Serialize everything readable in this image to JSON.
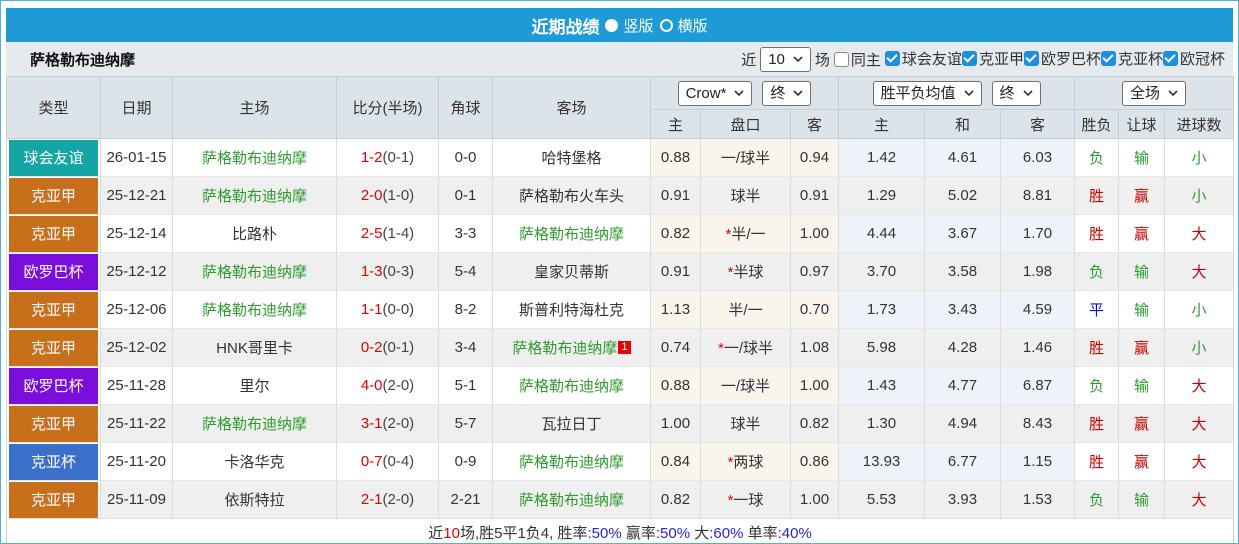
{
  "titlebar": {
    "title": "近期战绩",
    "radio_vertical_label": "竖版",
    "radio_horizontal_label": "横版"
  },
  "filterbar": {
    "team": "萨格勒布迪纳摩",
    "recent_label": "近",
    "recent_value": "10",
    "matches_label": "场",
    "same_home_label": "同主",
    "leagues": [
      "球会友谊",
      "克亚甲",
      "欧罗巴杯",
      "克亚杯",
      "欧冠杯"
    ]
  },
  "table": {
    "selects": {
      "odds_company": "Crow*",
      "odds_time": "终",
      "mean_type": "胜平负均值",
      "mean_time": "终",
      "scope": "全场"
    },
    "headers": {
      "type": "类型",
      "date": "日期",
      "home": "主场",
      "score": "比分(半场)",
      "corner": "角球",
      "away": "客场",
      "hcp_home": "主",
      "handicap": "盘口",
      "hcp_away": "客",
      "mean_home": "主",
      "mean_draw": "和",
      "mean_away": "客",
      "wdl": "胜负",
      "let": "让球",
      "goals": "进球数"
    },
    "rows": [
      {
        "type": "球会友谊",
        "type_color": "#14A5A5",
        "date": "26-01-15",
        "home": "萨格勒布迪纳摩",
        "home_green": true,
        "score": "1-2",
        "half": "(0-1)",
        "corner": "0-0",
        "away": "哈特堡格",
        "away_green": false,
        "away_sup": "",
        "odds_h": "0.88",
        "handicap_star": false,
        "handicap": "一/球半",
        "odds_a": "0.94",
        "mean_h": "1.42",
        "mean_d": "4.61",
        "mean_a": "6.03",
        "wdl": "负",
        "wdl_color": "green",
        "let": "输",
        "let_color": "green",
        "goal": "小",
        "goal_color": "green"
      },
      {
        "type": "克亚甲",
        "type_color": "#C76F1B",
        "date": "25-12-21",
        "home": "萨格勒布迪纳摩",
        "home_green": true,
        "score": "2-0",
        "half": "(1-0)",
        "corner": "0-1",
        "away": "萨格勒布火车头",
        "away_green": false,
        "away_sup": "",
        "odds_h": "0.91",
        "handicap_star": false,
        "handicap": "球半",
        "odds_a": "0.91",
        "mean_h": "1.29",
        "mean_d": "5.02",
        "mean_a": "8.81",
        "wdl": "胜",
        "wdl_color": "red",
        "let": "赢",
        "let_color": "red",
        "goal": "小",
        "goal_color": "green"
      },
      {
        "type": "克亚甲",
        "type_color": "#C76F1B",
        "date": "25-12-14",
        "home": "比路朴",
        "home_green": false,
        "score": "2-5",
        "half": "(1-4)",
        "corner": "3-3",
        "away": "萨格勒布迪纳摩",
        "away_green": true,
        "away_sup": "",
        "odds_h": "0.82",
        "handicap_star": true,
        "handicap": "半/一",
        "odds_a": "1.00",
        "mean_h": "4.44",
        "mean_d": "3.67",
        "mean_a": "1.70",
        "wdl": "胜",
        "wdl_color": "red",
        "let": "赢",
        "let_color": "red",
        "goal": "大",
        "goal_color": "red"
      },
      {
        "type": "欧罗巴杯",
        "type_color": "#7B0EDB",
        "date": "25-12-12",
        "home": "萨格勒布迪纳摩",
        "home_green": true,
        "score": "1-3",
        "half": "(0-3)",
        "corner": "5-4",
        "away": "皇家贝蒂斯",
        "away_green": false,
        "away_sup": "",
        "odds_h": "0.91",
        "handicap_star": true,
        "handicap": "半球",
        "odds_a": "0.97",
        "mean_h": "3.70",
        "mean_d": "3.58",
        "mean_a": "1.98",
        "wdl": "负",
        "wdl_color": "green",
        "let": "输",
        "let_color": "green",
        "goal": "大",
        "goal_color": "red"
      },
      {
        "type": "克亚甲",
        "type_color": "#C76F1B",
        "date": "25-12-06",
        "home": "萨格勒布迪纳摩",
        "home_green": true,
        "score": "1-1",
        "half": "(0-0)",
        "corner": "8-2",
        "away": "斯普利特海杜克",
        "away_green": false,
        "away_sup": "",
        "odds_h": "1.13",
        "handicap_star": false,
        "handicap": "半/一",
        "odds_a": "0.70",
        "mean_h": "1.73",
        "mean_d": "3.43",
        "mean_a": "4.59",
        "wdl": "平",
        "wdl_color": "blue",
        "let": "输",
        "let_color": "green",
        "goal": "小",
        "goal_color": "green"
      },
      {
        "type": "克亚甲",
        "type_color": "#C76F1B",
        "date": "25-12-02",
        "home": "HNK哥里卡",
        "home_green": false,
        "score": "0-2",
        "half": "(0-1)",
        "corner": "3-4",
        "away": "萨格勒布迪纳摩",
        "away_green": true,
        "away_sup": "1",
        "odds_h": "0.74",
        "handicap_star": true,
        "handicap": "一/球半",
        "odds_a": "1.08",
        "mean_h": "5.98",
        "mean_d": "4.28",
        "mean_a": "1.46",
        "wdl": "胜",
        "wdl_color": "red",
        "let": "赢",
        "let_color": "red",
        "goal": "小",
        "goal_color": "green"
      },
      {
        "type": "欧罗巴杯",
        "type_color": "#7B0EDB",
        "date": "25-11-28",
        "home": "里尔",
        "home_green": false,
        "score": "4-0",
        "half": "(2-0)",
        "corner": "5-1",
        "away": "萨格勒布迪纳摩",
        "away_green": true,
        "away_sup": "",
        "odds_h": "0.88",
        "handicap_star": false,
        "handicap": "一/球半",
        "odds_a": "1.00",
        "mean_h": "1.43",
        "mean_d": "4.77",
        "mean_a": "6.87",
        "wdl": "负",
        "wdl_color": "green",
        "let": "输",
        "let_color": "green",
        "goal": "大",
        "goal_color": "red"
      },
      {
        "type": "克亚甲",
        "type_color": "#C76F1B",
        "date": "25-11-22",
        "home": "萨格勒布迪纳摩",
        "home_green": true,
        "score": "3-1",
        "half": "(2-0)",
        "corner": "5-7",
        "away": "瓦拉日丁",
        "away_green": false,
        "away_sup": "",
        "odds_h": "1.00",
        "handicap_star": false,
        "handicap": "球半",
        "odds_a": "0.82",
        "mean_h": "1.30",
        "mean_d": "4.94",
        "mean_a": "8.43",
        "wdl": "胜",
        "wdl_color": "red",
        "let": "赢",
        "let_color": "red",
        "goal": "大",
        "goal_color": "red"
      },
      {
        "type": "克亚杯",
        "type_color": "#3A70C9",
        "date": "25-11-20",
        "home": "卡洛华克",
        "home_green": false,
        "score": "0-7",
        "half": "(0-4)",
        "corner": "0-9",
        "away": "萨格勒布迪纳摩",
        "away_green": true,
        "away_sup": "",
        "odds_h": "0.84",
        "handicap_star": true,
        "handicap": "两球",
        "odds_a": "0.86",
        "mean_h": "13.93",
        "mean_d": "6.77",
        "mean_a": "1.15",
        "wdl": "胜",
        "wdl_color": "red",
        "let": "赢",
        "let_color": "red",
        "goal": "大",
        "goal_color": "red"
      },
      {
        "type": "克亚甲",
        "type_color": "#C76F1B",
        "date": "25-11-09",
        "home": "依斯特拉",
        "home_green": false,
        "score": "2-1",
        "half": "(2-0)",
        "corner": "2-21",
        "away": "萨格勒布迪纳摩",
        "away_green": true,
        "away_sup": "",
        "odds_h": "0.82",
        "handicap_star": true,
        "handicap": "一球",
        "odds_a": "1.00",
        "mean_h": "5.53",
        "mean_d": "3.93",
        "mean_a": "1.53",
        "wdl": "负",
        "wdl_color": "green",
        "let": "输",
        "let_color": "green",
        "goal": "大",
        "goal_color": "red"
      }
    ]
  },
  "footer": {
    "segments": [
      {
        "text": "近",
        "color": "#333333"
      },
      {
        "text": "10",
        "color": "#E60000"
      },
      {
        "text": "场,胜5平1负4, 胜率",
        "color": "#333333"
      },
      {
        "text": ":50%",
        "color": "#2626CC"
      },
      {
        "text": " 赢率",
        "color": "#333333"
      },
      {
        "text": ":50%",
        "color": "#2626CC"
      },
      {
        "text": " 大",
        "color": "#333333"
      },
      {
        "text": ":60%",
        "color": "#2626CC"
      },
      {
        "text": " 单率",
        "color": "#333333"
      },
      {
        "text": ":40%",
        "color": "#2626CC"
      }
    ]
  }
}
